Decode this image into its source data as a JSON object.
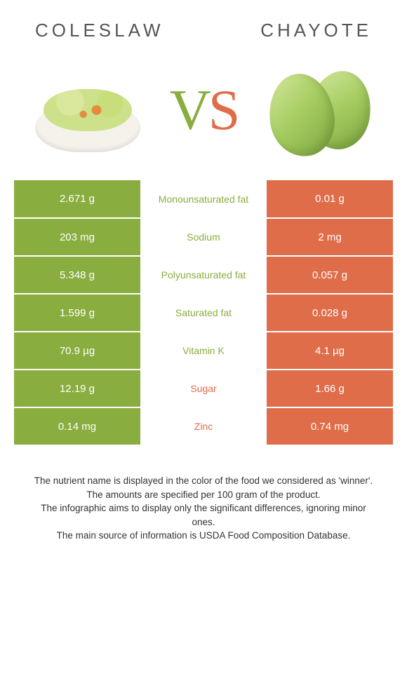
{
  "titles": {
    "left": "COLESLAW",
    "right": "CHAYOTE"
  },
  "vs": {
    "v": "V",
    "s": "S"
  },
  "colors": {
    "left_col": "#8aad3f",
    "right_col": "#e06d49",
    "vs_v": "#8aad3f",
    "vs_s": "#e06d49"
  },
  "rows": [
    {
      "left": "2.671 g",
      "mid": "Monounsaturated fat",
      "right": "0.01 g",
      "mid_color": "#8aad3f"
    },
    {
      "left": "203 mg",
      "mid": "Sodium",
      "right": "2 mg",
      "mid_color": "#8aad3f"
    },
    {
      "left": "5.348 g",
      "mid": "Polyunsaturated fat",
      "right": "0.057 g",
      "mid_color": "#8aad3f"
    },
    {
      "left": "1.599 g",
      "mid": "Saturated fat",
      "right": "0.028 g",
      "mid_color": "#8aad3f"
    },
    {
      "left": "70.9 µg",
      "mid": "Vitamin K",
      "right": "4.1 µg",
      "mid_color": "#8aad3f"
    },
    {
      "left": "12.19 g",
      "mid": "Sugar",
      "right": "1.66 g",
      "mid_color": "#e06d49"
    },
    {
      "left": "0.14 mg",
      "mid": "Zinc",
      "right": "0.74 mg",
      "mid_color": "#e06d49"
    }
  ],
  "footer": [
    "The nutrient name is displayed in the color of the food we considered as 'winner'.",
    "The amounts are specified per 100 gram of the product.",
    "The infographic aims to display only the significant differences, ignoring minor ones.",
    "The main source of information is USDA Food Composition Database."
  ]
}
